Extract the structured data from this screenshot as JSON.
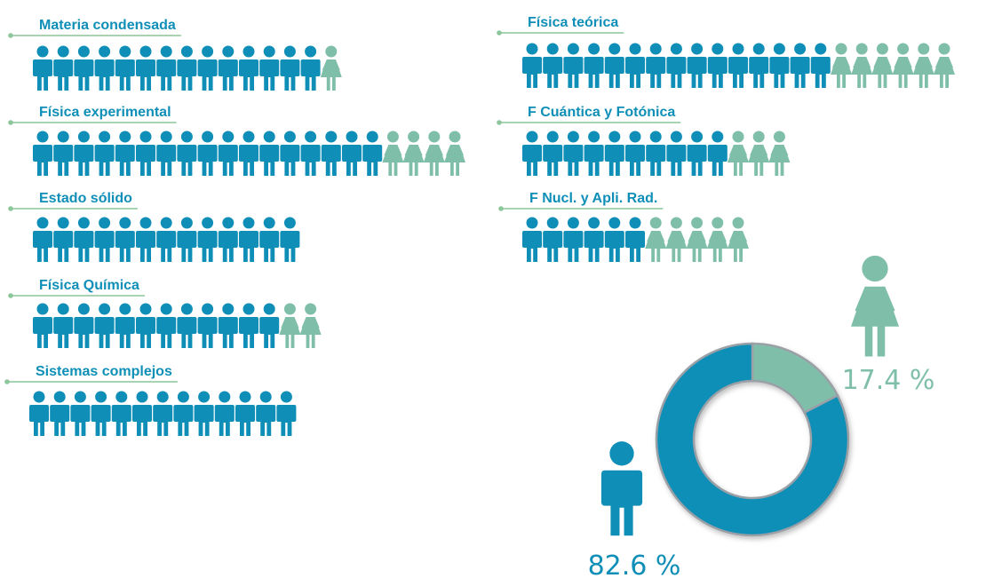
{
  "chart_data": [
    {
      "type": "pictograph",
      "legend": [
        {
          "icon": "man-icon",
          "color": "#0f8fb7"
        },
        {
          "icon": "woman-icon",
          "color": "#7fbfaa"
        }
      ],
      "categories": [
        {
          "label": "Materia condensada",
          "men": 14,
          "women": 1
        },
        {
          "label": "Física experimental",
          "men": 17,
          "women": 4
        },
        {
          "label": "Estado sólido",
          "men": 13,
          "women": 0
        },
        {
          "label": "Física Química",
          "men": 12,
          "women": 2
        },
        {
          "label": "Sistemas complejos",
          "men": 13,
          "women": 0
        },
        {
          "label": "Física teórica",
          "men": 15,
          "women": 6
        },
        {
          "label": "F Cuántica y Fotónica",
          "men": 10,
          "women": 3
        },
        {
          "label": "F Nucl. y Apli. Rad.",
          "men": 6,
          "women": 5
        }
      ]
    },
    {
      "type": "pie",
      "variant": "donut",
      "slices": [
        {
          "group": "men",
          "value": 82.6,
          "label": "82.6 %",
          "icon": "man-icon",
          "color": "#0f8fb7"
        },
        {
          "group": "women",
          "value": 17.4,
          "label": "17.4 %",
          "icon": "woman-icon",
          "color": "#7fbfaa"
        }
      ]
    }
  ],
  "colors": {
    "men": "#0f8fb7",
    "women": "#7fbfaa",
    "label_text": "#0f8fb7",
    "underline": "#8cc69a",
    "donut_gap": "#9aa0a6"
  }
}
